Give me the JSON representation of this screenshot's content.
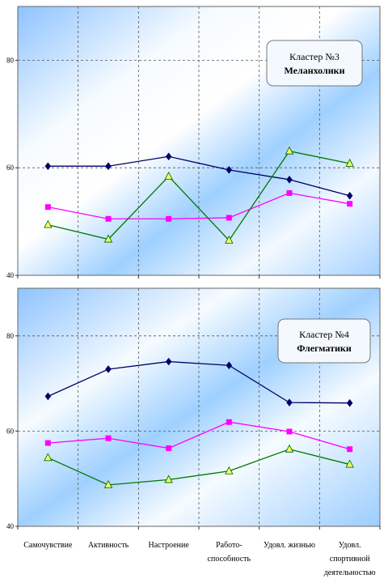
{
  "categories_text": [
    [
      "Самочувствие"
    ],
    [
      "Активность"
    ],
    [
      "Настроение"
    ],
    [
      "Работо-",
      "способность"
    ],
    [
      "Удовл. жизнью"
    ],
    [
      "Удовл.",
      "спортивной",
      "деятельностью"
    ]
  ],
  "colors": {
    "navy": "#000066",
    "magenta": "#ff00ff",
    "green": "#007700",
    "marker_yellow": "#ffff66",
    "plot_blue": "#99ccff"
  },
  "chart_data": [
    {
      "type": "line",
      "label_line1": "Кластер №3",
      "label_line2": "Меланхолики",
      "y_tick_labels": [
        "40",
        "60",
        "80"
      ],
      "ylim": [
        40,
        90
      ],
      "grid": true,
      "series": [
        {
          "color": "#000066",
          "marker": "diamond",
          "values": [
            60.3,
            60.3,
            62.1,
            59.6,
            57.8,
            54.8
          ]
        },
        {
          "color": "#ff00ff",
          "marker": "square",
          "values": [
            52.7,
            50.5,
            50.5,
            50.7,
            55.3,
            53.3
          ]
        },
        {
          "color": "#007700",
          "marker": "triangle",
          "values": [
            49.4,
            46.7,
            58.4,
            46.5,
            63.1,
            60.8
          ]
        }
      ]
    },
    {
      "type": "line",
      "label_line1": "Кластер №4",
      "label_line2": "Флегматики",
      "y_tick_labels": [
        "40",
        "60",
        "80"
      ],
      "ylim": [
        40,
        90
      ],
      "grid": true,
      "series": [
        {
          "color": "#000066",
          "marker": "diamond",
          "values": [
            67.3,
            73.0,
            74.6,
            73.8,
            66.0,
            65.9
          ]
        },
        {
          "color": "#ff00ff",
          "marker": "square",
          "values": [
            57.5,
            58.5,
            56.4,
            61.9,
            59.9,
            56.2
          ]
        },
        {
          "color": "#007700",
          "marker": "triangle",
          "values": [
            54.4,
            48.7,
            49.8,
            51.6,
            56.2,
            53.0
          ]
        }
      ]
    }
  ]
}
